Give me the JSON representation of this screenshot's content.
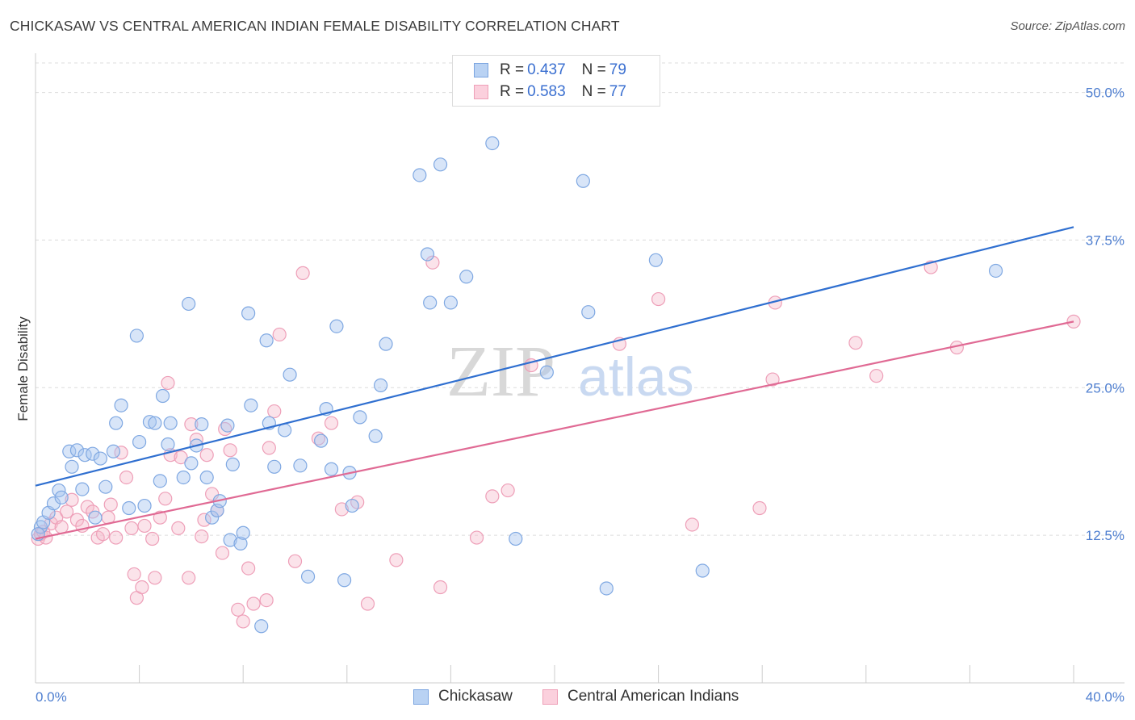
{
  "title": "CHICKASAW VS CENTRAL AMERICAN INDIAN FEMALE DISABILITY CORRELATION CHART",
  "source": "Source: ZipAtlas.com",
  "watermark": {
    "zip": "ZIP",
    "atlas": "atlas"
  },
  "legend": {
    "rows": [
      {
        "r_label": "R = ",
        "r_value": "0.437",
        "n_label": "N = ",
        "n_value": "79"
      },
      {
        "r_label": "R = ",
        "r_value": "0.583",
        "n_label": "N = ",
        "n_value": "77"
      }
    ]
  },
  "bottom_legend": {
    "series1": "Chickasaw",
    "series2": "Central American Indians"
  },
  "chart_data": {
    "type": "scatter",
    "title": "CHICKASAW VS CENTRAL AMERICAN INDIAN FEMALE DISABILITY CORRELATION CHART",
    "xlabel": "",
    "ylabel": "Female Disability",
    "xlim": [
      0,
      40
    ],
    "ylim": [
      0,
      52.5
    ],
    "x_tick_labels": [
      "0.0%",
      "40.0%"
    ],
    "y_ticks": [
      12.5,
      25.0,
      37.5,
      50.0
    ],
    "y_tick_labels": [
      "12.5%",
      "25.0%",
      "37.5%",
      "50.0%"
    ],
    "grid": true,
    "legend_position": "top-center",
    "colors": {
      "Chickasaw": "#a9c6ef",
      "Chickasaw_line": "#2f6fd0",
      "Central American Indians": "#f5b9cb",
      "Central American Indians_line": "#e06a94"
    },
    "series": [
      {
        "name": "Chickasaw",
        "color": "#a9c6ef",
        "trend": {
          "x": [
            0,
            40
          ],
          "y": [
            16.7,
            38.6
          ]
        },
        "points": [
          [
            0.2,
            13.2
          ],
          [
            0.3,
            13.6
          ],
          [
            0.5,
            14.4
          ],
          [
            0.7,
            15.2
          ],
          [
            0.9,
            16.3
          ],
          [
            1.0,
            15.7
          ],
          [
            1.3,
            19.6
          ],
          [
            1.4,
            18.3
          ],
          [
            1.6,
            19.7
          ],
          [
            1.8,
            16.4
          ],
          [
            1.9,
            19.3
          ],
          [
            2.2,
            19.4
          ],
          [
            2.3,
            14.0
          ],
          [
            2.5,
            19.0
          ],
          [
            2.7,
            16.6
          ],
          [
            3.0,
            19.6
          ],
          [
            3.1,
            22.0
          ],
          [
            3.3,
            23.5
          ],
          [
            3.6,
            14.8
          ],
          [
            3.9,
            29.4
          ],
          [
            4.0,
            20.4
          ],
          [
            4.2,
            15.0
          ],
          [
            4.4,
            22.1
          ],
          [
            4.6,
            22.0
          ],
          [
            4.8,
            17.1
          ],
          [
            4.9,
            24.3
          ],
          [
            5.1,
            20.2
          ],
          [
            5.2,
            22.0
          ],
          [
            5.7,
            17.4
          ],
          [
            5.9,
            32.1
          ],
          [
            6.0,
            18.6
          ],
          [
            6.2,
            20.1
          ],
          [
            6.4,
            21.9
          ],
          [
            6.6,
            17.4
          ],
          [
            6.8,
            14.0
          ],
          [
            7.0,
            14.6
          ],
          [
            7.1,
            15.4
          ],
          [
            7.4,
            21.8
          ],
          [
            7.5,
            12.1
          ],
          [
            7.6,
            18.5
          ],
          [
            7.9,
            11.8
          ],
          [
            8.0,
            12.7
          ],
          [
            8.2,
            31.3
          ],
          [
            8.3,
            23.5
          ],
          [
            8.7,
            4.8
          ],
          [
            8.9,
            29.0
          ],
          [
            9.0,
            22.0
          ],
          [
            9.2,
            18.3
          ],
          [
            9.6,
            21.4
          ],
          [
            9.8,
            26.1
          ],
          [
            10.2,
            18.4
          ],
          [
            10.5,
            9.0
          ],
          [
            11.0,
            20.5
          ],
          [
            11.2,
            23.2
          ],
          [
            11.4,
            18.1
          ],
          [
            11.6,
            30.2
          ],
          [
            11.9,
            8.7
          ],
          [
            12.1,
            17.8
          ],
          [
            12.2,
            15.0
          ],
          [
            12.5,
            22.5
          ],
          [
            13.1,
            20.9
          ],
          [
            13.3,
            25.2
          ],
          [
            13.5,
            28.7
          ],
          [
            14.8,
            43.0
          ],
          [
            15.1,
            36.3
          ],
          [
            15.2,
            32.2
          ],
          [
            15.6,
            43.9
          ],
          [
            16.0,
            32.2
          ],
          [
            16.6,
            34.4
          ],
          [
            17.6,
            45.7
          ],
          [
            18.5,
            12.2
          ],
          [
            19.7,
            26.3
          ],
          [
            21.1,
            42.5
          ],
          [
            21.3,
            31.4
          ],
          [
            22.0,
            8.0
          ],
          [
            23.9,
            35.8
          ],
          [
            25.7,
            9.5
          ],
          [
            37.0,
            34.9
          ],
          [
            0.1,
            12.6
          ]
        ]
      },
      {
        "name": "Central American Indians",
        "color": "#f5b9cb",
        "trend": {
          "x": [
            0,
            40
          ],
          "y": [
            12.2,
            30.6
          ]
        },
        "points": [
          [
            0.1,
            12.2
          ],
          [
            0.2,
            12.6
          ],
          [
            0.3,
            12.8
          ],
          [
            0.4,
            12.3
          ],
          [
            0.6,
            13.5
          ],
          [
            0.8,
            14.0
          ],
          [
            1.0,
            13.2
          ],
          [
            1.2,
            14.5
          ],
          [
            1.4,
            15.5
          ],
          [
            1.6,
            13.8
          ],
          [
            1.8,
            13.3
          ],
          [
            2.0,
            14.9
          ],
          [
            2.2,
            14.5
          ],
          [
            2.4,
            12.3
          ],
          [
            2.6,
            12.6
          ],
          [
            2.8,
            14.0
          ],
          [
            2.9,
            15.1
          ],
          [
            3.1,
            12.3
          ],
          [
            3.3,
            19.5
          ],
          [
            3.5,
            17.4
          ],
          [
            3.7,
            13.1
          ],
          [
            3.8,
            9.2
          ],
          [
            3.9,
            7.2
          ],
          [
            4.1,
            8.1
          ],
          [
            4.2,
            13.3
          ],
          [
            4.5,
            12.2
          ],
          [
            4.6,
            8.9
          ],
          [
            4.8,
            14.0
          ],
          [
            5.0,
            15.6
          ],
          [
            5.1,
            25.4
          ],
          [
            5.2,
            19.3
          ],
          [
            5.5,
            13.1
          ],
          [
            5.6,
            19.1
          ],
          [
            5.9,
            8.9
          ],
          [
            6.0,
            21.9
          ],
          [
            6.2,
            20.6
          ],
          [
            6.4,
            12.4
          ],
          [
            6.5,
            13.8
          ],
          [
            6.6,
            19.3
          ],
          [
            6.8,
            16.0
          ],
          [
            7.0,
            14.6
          ],
          [
            7.2,
            11.0
          ],
          [
            7.3,
            21.5
          ],
          [
            7.5,
            19.7
          ],
          [
            7.8,
            6.2
          ],
          [
            8.0,
            5.2
          ],
          [
            8.2,
            9.7
          ],
          [
            8.4,
            6.7
          ],
          [
            8.9,
            7.0
          ],
          [
            9.0,
            19.9
          ],
          [
            9.2,
            23.0
          ],
          [
            9.4,
            29.5
          ],
          [
            10.0,
            10.3
          ],
          [
            10.3,
            34.7
          ],
          [
            10.9,
            20.7
          ],
          [
            11.4,
            22.0
          ],
          [
            11.8,
            14.7
          ],
          [
            12.4,
            15.3
          ],
          [
            12.8,
            6.7
          ],
          [
            13.9,
            10.4
          ],
          [
            15.3,
            35.6
          ],
          [
            15.6,
            8.1
          ],
          [
            17.0,
            12.3
          ],
          [
            17.6,
            15.8
          ],
          [
            18.2,
            16.3
          ],
          [
            19.1,
            26.9
          ],
          [
            22.5,
            28.7
          ],
          [
            24.0,
            32.5
          ],
          [
            25.3,
            13.4
          ],
          [
            27.9,
            14.8
          ],
          [
            28.4,
            25.7
          ],
          [
            28.5,
            32.2
          ],
          [
            31.6,
            28.8
          ],
          [
            32.4,
            26.0
          ],
          [
            34.5,
            35.2
          ],
          [
            35.5,
            28.4
          ],
          [
            40.0,
            30.6
          ]
        ]
      }
    ]
  }
}
